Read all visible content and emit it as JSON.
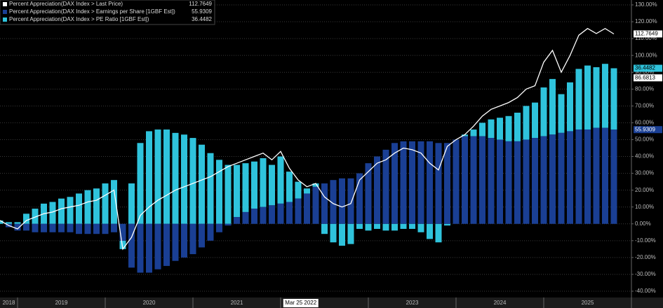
{
  "chart_data": {
    "type": "bar_line",
    "x": [
      2018.8,
      2018.9,
      2019,
      2019.1,
      2019.2,
      2019.3,
      2019.4,
      2019.5,
      2019.6,
      2019.7,
      2019.8,
      2019.9,
      2020,
      2020.1,
      2020.2,
      2020.3,
      2020.4,
      2020.5,
      2020.6,
      2020.7,
      2020.8,
      2020.9,
      2021,
      2021.1,
      2021.2,
      2021.3,
      2021.4,
      2021.5,
      2021.6,
      2021.7,
      2021.8,
      2021.9,
      2022,
      2022.1,
      2022.2,
      2022.3,
      2022.4,
      2022.5,
      2022.6,
      2022.7,
      2022.8,
      2022.9,
      2023,
      2023.1,
      2023.2,
      2023.3,
      2023.4,
      2023.5,
      2023.6,
      2023.7,
      2023.8,
      2023.9,
      2024,
      2024.1,
      2024.2,
      2024.3,
      2024.4,
      2024.5,
      2024.6,
      2024.7,
      2024.8,
      2024.9,
      2025,
      2025.1,
      2025.2,
      2025.3,
      2025.4,
      2025.5,
      2025.6,
      2025.7,
      2025.8
    ],
    "series": [
      {
        "name": "Percent Appreciation(DAX Index > Last Price)",
        "color": "#ffffff",
        "kind": "line",
        "values": [
          2,
          -1,
          -3,
          2,
          4,
          6,
          7,
          9,
          10,
          11,
          13,
          14,
          17,
          20,
          -15,
          -8,
          5,
          10,
          14,
          17,
          20,
          22,
          24,
          26,
          28,
          31,
          34,
          36,
          38,
          40,
          42,
          38,
          43,
          33,
          26,
          22,
          24,
          16,
          12,
          10,
          12,
          26,
          31,
          36,
          38,
          42,
          45,
          44,
          42,
          36,
          32,
          46,
          50,
          53,
          58,
          64,
          68,
          70,
          72,
          75,
          80,
          82,
          96,
          103,
          90,
          100,
          112,
          116,
          113,
          116,
          112.7649
        ]
      },
      {
        "name": "Percent Appreciation(DAX Index > Earnings per Share [1GBF Est])",
        "color": "#1a3f94",
        "kind": "bar",
        "values": [
          0,
          -2,
          -4,
          -4,
          -5,
          -5,
          -5,
          -5,
          -5,
          -6,
          -6,
          -6,
          -6,
          -5,
          -10,
          -26,
          -29,
          -29,
          -27,
          -25,
          -22,
          -20,
          -18,
          -14,
          -10,
          -5,
          -1,
          4,
          7,
          9,
          10,
          11,
          12,
          13,
          15,
          18,
          22,
          24,
          26,
          27,
          27,
          30,
          36,
          40,
          44,
          48,
          49,
          49,
          49,
          49,
          48,
          48,
          50,
          52,
          52,
          52,
          51,
          50,
          49,
          49,
          50,
          51,
          52,
          53,
          54,
          55,
          56,
          56,
          57,
          57,
          55.9309
        ]
      },
      {
        "name": "Percent Appreciation(DAX Index > PE Ratio [1GBF Est])",
        "color": "#2fc3dc",
        "kind": "stacked_bar",
        "values": [
          2,
          1,
          1,
          6,
          9,
          12,
          13,
          15,
          16,
          18,
          20,
          21,
          24,
          26,
          -5,
          24,
          48,
          55,
          56,
          56,
          54,
          53,
          51,
          47,
          42,
          38,
          35,
          31,
          29,
          28,
          29,
          24,
          28,
          18,
          10,
          3,
          2,
          -6,
          -11,
          -13,
          -12,
          -3,
          -4,
          -3,
          -4,
          -4,
          -3,
          -3,
          -5,
          -9,
          -11,
          -1,
          0,
          1,
          4,
          8,
          11,
          13,
          15,
          17,
          20,
          21,
          29,
          33,
          23,
          29,
          36,
          38,
          36,
          38,
          36.4482
        ]
      }
    ],
    "extra_badge": {
      "label": "86.6813",
      "value": 86.6813
    },
    "crosshair": {
      "label": "Mar 25 2022",
      "x": 2022.23
    },
    "xlim": [
      2018.8,
      2026.0
    ],
    "xticks": [
      {
        "value": 2018.9,
        "label": "2018"
      },
      {
        "value": 2019.5,
        "label": "2019"
      },
      {
        "value": 2020.5,
        "label": "2020"
      },
      {
        "value": 2021.5,
        "label": "2021"
      },
      {
        "value": 2023.5,
        "label": "2023"
      },
      {
        "value": 2024.5,
        "label": "2024"
      },
      {
        "value": 2025.5,
        "label": "2025"
      }
    ],
    "x_dividers": [
      2019,
      2020,
      2021,
      2022,
      2023,
      2024,
      2025,
      2026
    ],
    "ylim": [
      -40,
      130
    ],
    "yticks": [
      {
        "value": 130,
        "label": "130.00%"
      },
      {
        "value": 120,
        "label": "120.00%"
      },
      {
        "value": 110,
        "label": "110.00%"
      },
      {
        "value": 100,
        "label": "100.00%"
      },
      {
        "value": 90,
        "label": "90.00%"
      },
      {
        "value": 80,
        "label": "80.00%"
      },
      {
        "value": 70,
        "label": "70.00%"
      },
      {
        "value": 60,
        "label": "60.00%"
      },
      {
        "value": 50,
        "label": "50.00%"
      },
      {
        "value": 40,
        "label": "40.00%"
      },
      {
        "value": 30,
        "label": "30.00%"
      },
      {
        "value": 20,
        "label": "20.00%"
      },
      {
        "value": 10,
        "label": "10.00%"
      },
      {
        "value": 0,
        "label": "0.00%"
      },
      {
        "value": -10,
        "label": "-10.00%"
      },
      {
        "value": -20,
        "label": "-20.00%"
      },
      {
        "value": -30,
        "label": "-30.00%"
      },
      {
        "value": -40,
        "label": "-40.00%"
      }
    ],
    "grid": true
  }
}
